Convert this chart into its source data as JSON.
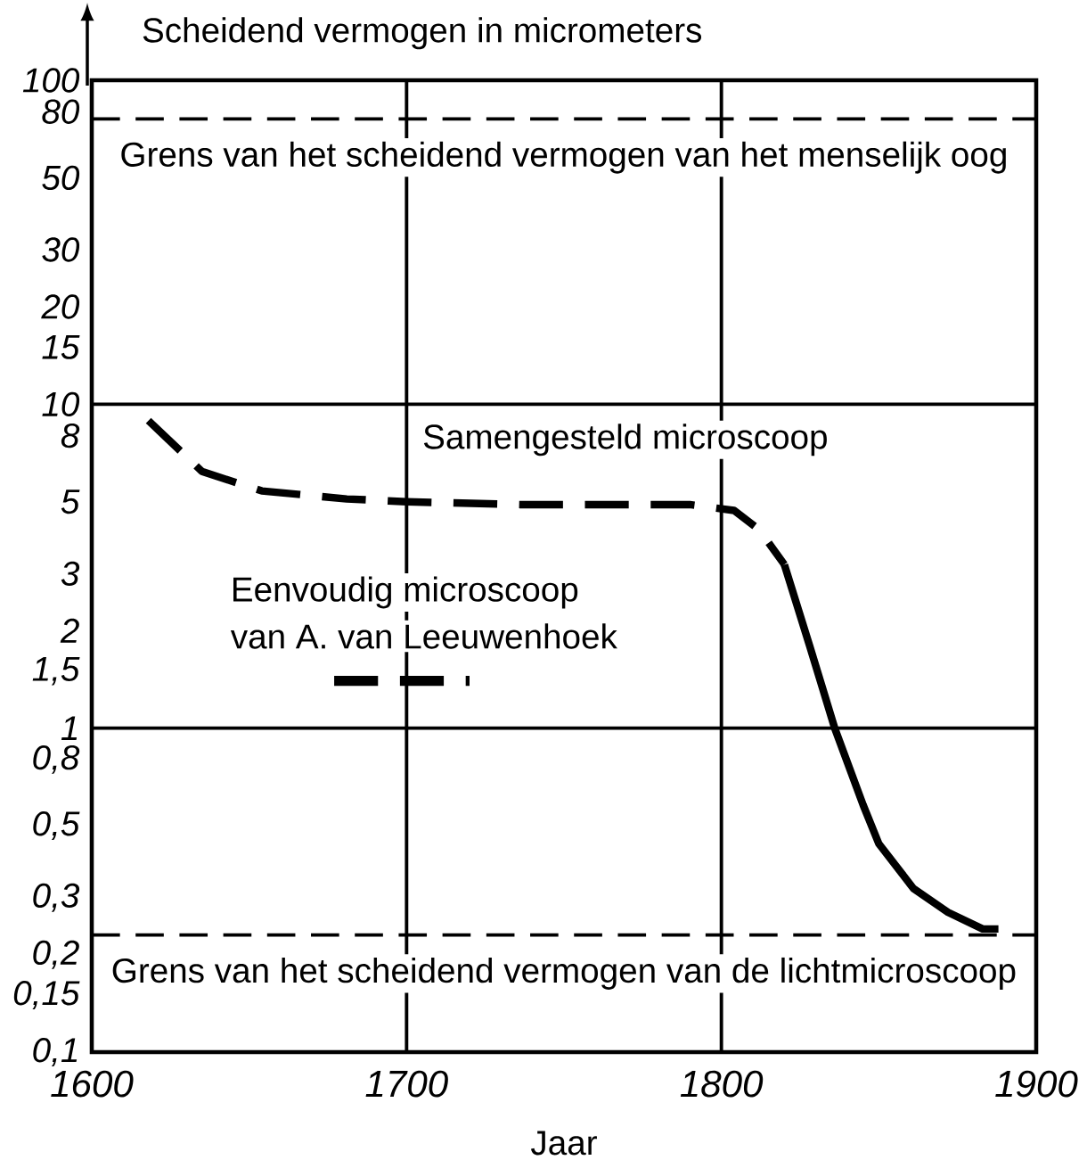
{
  "chart_data": {
    "type": "line",
    "xlabel": "Jaar",
    "ylabel": "Scheidend vermogen in micrometers",
    "log": "y",
    "marker": "none",
    "xlim": [
      1600,
      1900
    ],
    "xticks": [
      1600,
      1700,
      1800,
      1900
    ],
    "ylim": [
      0.1,
      100
    ],
    "yticks": [
      100,
      80,
      50,
      30,
      20,
      15,
      10,
      8,
      5,
      3,
      2,
      {
        "value": 1.5,
        "label": "1,5"
      },
      1,
      {
        "value": 0.8,
        "label": "0,8"
      },
      {
        "value": 0.5,
        "label": "0,5"
      },
      {
        "value": 0.3,
        "label": "0,3"
      },
      {
        "value": 0.2,
        "label": "0,2"
      },
      {
        "value": 0.15,
        "label": "0,15"
      },
      {
        "value": 0.1,
        "label": "0,1"
      }
    ],
    "series": [
      {
        "color": "#000000",
        "line_style": "dashed",
        "x": [
          1618,
          1635,
          1654,
          1681,
          1700,
          1736,
          1790,
          1804,
          1812,
          1820
        ],
        "values": [
          8.9,
          6.2,
          5.4,
          5.1,
          5.0,
          4.9,
          4.9,
          4.7,
          4.1,
          3.2
        ]
      },
      {
        "color": "#000000",
        "line_style": "solid",
        "x": [
          1820,
          1828,
          1836,
          1845,
          1850,
          1861,
          1872,
          1883,
          1888
        ],
        "values": [
          3.2,
          1.8,
          1.0,
          0.58,
          0.44,
          0.32,
          0.27,
          0.24,
          0.24
        ]
      },
      {
        "color": "#000000",
        "line_style": "dashed",
        "x": [
          1677,
          1720
        ],
        "values": [
          1.4,
          1.4
        ]
      }
    ],
    "ref_lines": [
      {
        "axis": "y",
        "value": 76,
        "label": "Grens van het scheidend vermogen van het menselijk oog",
        "line_style": "dashed"
      },
      {
        "axis": "y",
        "value": 0.23,
        "label": "Grens van het scheidend vermogen van de lichtmicroscoop",
        "line_style": "dashed"
      },
      {
        "axis": "y",
        "value": 10,
        "line_style": "solid"
      },
      {
        "axis": "y",
        "value": 1,
        "line_style": "solid"
      },
      {
        "axis": "x",
        "value": 1700,
        "line_style": "solid"
      },
      {
        "axis": "x",
        "value": 1800,
        "line_style": "solid"
      }
    ],
    "annotations": [
      "Samengesteld microscoop",
      "Eenvoudig microscoop",
      "van A. van Leeuwenhoek"
    ]
  }
}
